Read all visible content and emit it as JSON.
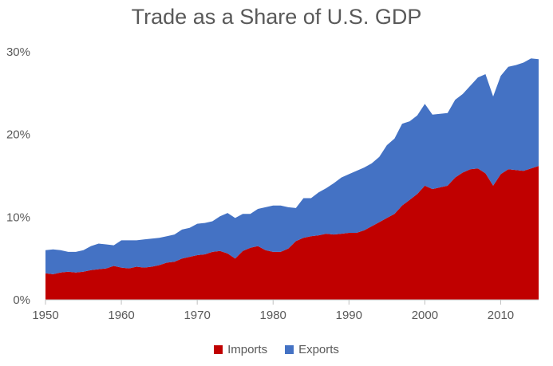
{
  "chart_data": {
    "type": "area",
    "stacked": true,
    "title": "Trade as a Share of U.S. GDP",
    "xlabel": "",
    "ylabel": "",
    "x": [
      1950,
      1951,
      1952,
      1953,
      1954,
      1955,
      1956,
      1957,
      1958,
      1959,
      1960,
      1961,
      1962,
      1963,
      1964,
      1965,
      1966,
      1967,
      1968,
      1969,
      1970,
      1971,
      1972,
      1973,
      1974,
      1975,
      1976,
      1977,
      1978,
      1979,
      1980,
      1981,
      1982,
      1983,
      1984,
      1985,
      1986,
      1987,
      1988,
      1989,
      1990,
      1991,
      1992,
      1993,
      1994,
      1995,
      1996,
      1997,
      1998,
      1999,
      2000,
      2001,
      2002,
      2003,
      2004,
      2005,
      2006,
      2007,
      2008,
      2009,
      2010,
      2011,
      2012,
      2013,
      2014,
      2015
    ],
    "xlim": [
      1950,
      2015
    ],
    "xticks": [
      "1950",
      "1960",
      "1970",
      "1980",
      "1990",
      "2000",
      "2010"
    ],
    "ylim": [
      0,
      30
    ],
    "yticks": [
      "0%",
      "10%",
      "20%",
      "30%"
    ],
    "grid": false,
    "legend_position": "bottom",
    "series": [
      {
        "name": "Imports",
        "color": "#c00000",
        "values": [
          3.2,
          3.1,
          3.3,
          3.4,
          3.3,
          3.4,
          3.6,
          3.7,
          3.8,
          4.1,
          3.9,
          3.8,
          4.0,
          3.9,
          4.0,
          4.2,
          4.5,
          4.6,
          5.0,
          5.2,
          5.4,
          5.5,
          5.8,
          5.9,
          5.6,
          5.0,
          5.9,
          6.3,
          6.5,
          6.0,
          5.8,
          5.8,
          6.2,
          7.1,
          7.5,
          7.7,
          7.8,
          8.0,
          7.9,
          8.0,
          8.1,
          8.1,
          8.4,
          8.9,
          9.4,
          9.9,
          10.4,
          11.4,
          12.1,
          12.8,
          13.8,
          13.4,
          13.6,
          13.8,
          14.8,
          15.4,
          15.8,
          15.9,
          15.3,
          13.8,
          15.2,
          15.8,
          15.7,
          15.6,
          15.9,
          16.2
        ]
      },
      {
        "name": "Exports",
        "color": "#4472c4",
        "values": [
          2.8,
          3.0,
          2.7,
          2.4,
          2.5,
          2.6,
          2.9,
          3.1,
          2.9,
          2.5,
          3.3,
          3.4,
          3.2,
          3.4,
          3.4,
          3.3,
          3.2,
          3.3,
          3.5,
          3.5,
          3.8,
          3.8,
          3.7,
          4.2,
          4.9,
          4.9,
          4.5,
          4.1,
          4.5,
          5.2,
          5.6,
          5.6,
          5.0,
          4.0,
          4.8,
          4.6,
          5.2,
          5.5,
          6.2,
          6.8,
          7.1,
          7.5,
          7.6,
          7.6,
          7.9,
          8.8,
          9.1,
          9.9,
          9.5,
          9.5,
          9.9,
          9.0,
          8.9,
          8.8,
          9.4,
          9.5,
          10.1,
          11.0,
          12.0,
          10.8,
          11.9,
          12.4,
          12.7,
          13.1,
          13.3,
          12.9
        ]
      }
    ]
  }
}
